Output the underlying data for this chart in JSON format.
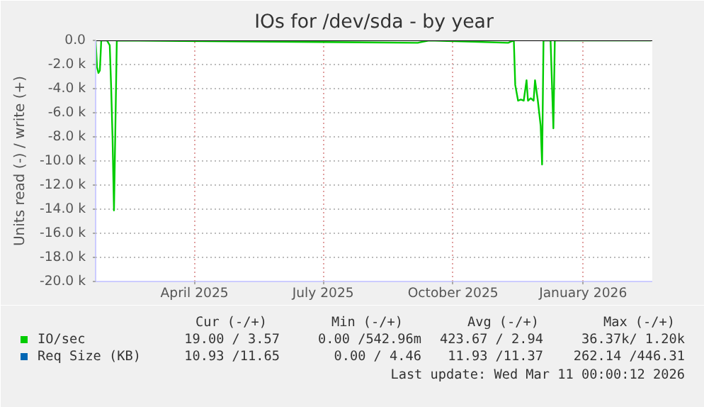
{
  "chart_data": {
    "type": "line",
    "title": "IOs for /dev/sda - by year",
    "ylabel": "Units read (-) / write (+)",
    "x": [
      "2025-02-10",
      "2025-02-11",
      "2025-02-12",
      "2025-02-13",
      "2025-02-14",
      "2025-02-18",
      "2025-02-20",
      "2025-02-21",
      "2025-02-22",
      "2025-02-23",
      "2025-02-24",
      "2025-02-25",
      "2025-09-26",
      "2025-10-04",
      "2025-11-29",
      "2025-12-03",
      "2025-12-04",
      "2025-12-06",
      "2025-12-08",
      "2025-12-10",
      "2025-12-12",
      "2025-12-13",
      "2025-12-15",
      "2025-12-17",
      "2025-12-18",
      "2025-12-20",
      "2025-12-22",
      "2025-12-23",
      "2025-12-24",
      "2025-12-29",
      "2025-12-31",
      "2026-01-01",
      "2026-03-10"
    ],
    "series": [
      {
        "name": "IO/sec",
        "color": "#00cc00",
        "values": [
          0,
          -2200,
          -2700,
          -2500,
          0,
          0,
          -400,
          -3900,
          -8200,
          -14100,
          -7100,
          0,
          -200,
          0,
          -200,
          0,
          -3700,
          -5000,
          -4900,
          -5000,
          -3300,
          -5000,
          -4800,
          -5000,
          -3300,
          -5000,
          -7100,
          -10300,
          0,
          0,
          -7300,
          0,
          0
        ]
      },
      {
        "name": "Req Size (KB)",
        "color": "#0066b3",
        "values": [
          null,
          null,
          null,
          null,
          null,
          null,
          null,
          null,
          null,
          null,
          null,
          null,
          null,
          null,
          null,
          null,
          null,
          null,
          null,
          null,
          null,
          null,
          null,
          null,
          null,
          null,
          null,
          null,
          null,
          null,
          null,
          null,
          null
        ]
      }
    ],
    "xlim": [
      "2025-02-10",
      "2026-03-11"
    ],
    "ylim": [
      -20000,
      0
    ],
    "xticks": [
      {
        "value": "2025-04-21",
        "label": "April 2025"
      },
      {
        "value": "2025-07-21",
        "label": "July 2025"
      },
      {
        "value": "2025-10-21",
        "label": "October 2025"
      },
      {
        "value": "2026-01-21",
        "label": "January 2026"
      }
    ],
    "yticks": [
      {
        "value": 0,
        "label": "0.0"
      },
      {
        "value": -2000,
        "label": "-2.0 k"
      },
      {
        "value": -4000,
        "label": "-4.0 k"
      },
      {
        "value": -6000,
        "label": "-6.0 k"
      },
      {
        "value": -8000,
        "label": "-8.0 k"
      },
      {
        "value": -10000,
        "label": "-10.0 k"
      },
      {
        "value": -12000,
        "label": "-12.0 k"
      },
      {
        "value": -14000,
        "label": "-14.0 k"
      },
      {
        "value": -16000,
        "label": "-16.0 k"
      },
      {
        "value": -18000,
        "label": "-18.0 k"
      },
      {
        "value": -20000,
        "label": "-20.0 k"
      }
    ],
    "grid": true,
    "legend": "bottom",
    "annotations": [
      "Cur (-/+)",
      "Min (-/+)",
      "Avg (-/+)",
      "Max (-/+)",
      "19.00 / 3.57",
      "0.00 /542.96m",
      "423.67 / 2.94",
      "36.37k/ 1.20k",
      "10.93 /11.65",
      "0.00 / 4.46",
      "11.93 /11.37",
      "262.14 /446.31",
      "Last update: Wed Mar 11 00:00:12 2026"
    ]
  }
}
